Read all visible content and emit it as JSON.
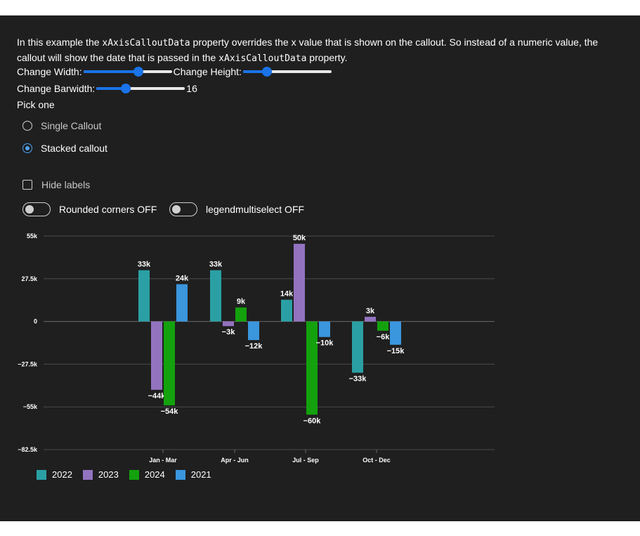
{
  "description": {
    "part1": "In this example the ",
    "code1": "xAxisCalloutData",
    "part2": " property overrides the x value that is shown on the callout. So instead of a numeric value, the callout will show the date that is passed in the ",
    "code2": "xAxisCalloutData",
    "part3": " property."
  },
  "controls": {
    "width_label": "Change Width:",
    "width_value": 0.62,
    "height_label": "Change Height:",
    "height_value": 0.27,
    "barwidth_label": "Change Barwidth:",
    "barwidth_value": 0.33,
    "barwidth_readout": "16",
    "pick_label": "Pick one",
    "radio_single": "Single Callout",
    "radio_stacked": "Stacked callout",
    "hide_labels": "Hide labels",
    "rounded_corners": "Rounded corners OFF",
    "legend_multiselect": "legendmultiselect OFF"
  },
  "chart_data": {
    "type": "bar",
    "categories": [
      "Jan - Mar",
      "Apr - Jun",
      "Jul - Sep",
      "Oct - Dec"
    ],
    "series": [
      {
        "name": "2022",
        "color": "#2aa0a4",
        "values": [
          33000,
          33000,
          14000,
          -33000
        ],
        "labels": [
          "33k",
          "33k",
          "14k",
          "−33k"
        ]
      },
      {
        "name": "2023",
        "color": "#9373c0",
        "values": [
          -44000,
          -3000,
          50000,
          3000
        ],
        "labels": [
          "−44k",
          "−3k",
          "50k",
          "3k"
        ]
      },
      {
        "name": "2024",
        "color": "#13a10e",
        "values": [
          -54000,
          9000,
          -60000,
          -6000
        ],
        "labels": [
          "−54k",
          "9k",
          "−60k",
          "−6k"
        ]
      },
      {
        "name": "2021",
        "color": "#3a96dd",
        "values": [
          24000,
          -12000,
          -10000,
          -15000
        ],
        "labels": [
          "24k",
          "−12k",
          "−10k",
          "−15k"
        ]
      }
    ],
    "y_ticks": [
      55000,
      27500,
      0,
      -27500,
      -55000,
      -82500
    ],
    "y_tick_labels": [
      "55k",
      "27.5k",
      "0",
      "−27.5k",
      "−55k",
      "−82.5k"
    ],
    "ylim": [
      -82500,
      55000
    ],
    "grid": true,
    "legend_position": "bottom-left"
  }
}
